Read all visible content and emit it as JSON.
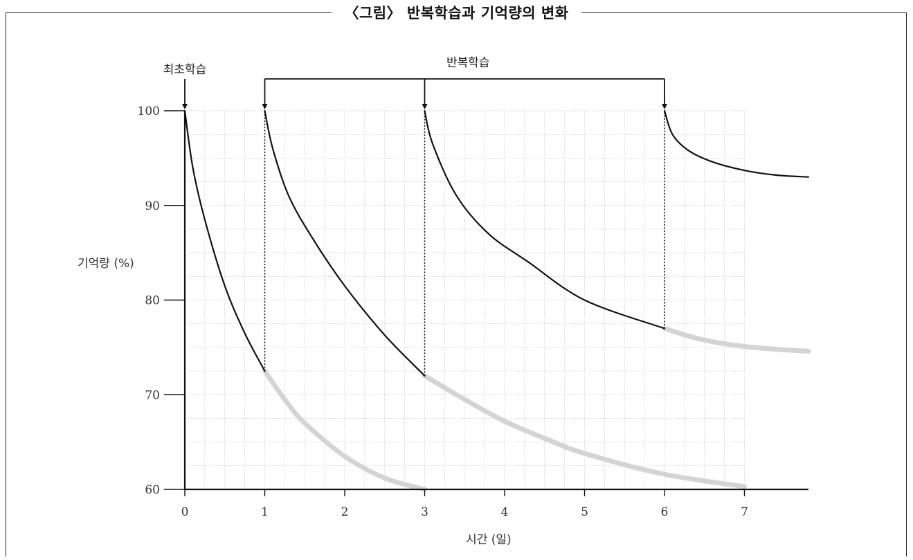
{
  "title": "〈그림〉 반복학습과 기억량의 변화",
  "chart_data": {
    "type": "line",
    "title": "〈그림〉 반복학습과 기억량의 변화",
    "xlabel": "시간 (일)",
    "ylabel": "기억량 (%)",
    "xlim": [
      0,
      7.8
    ],
    "ylim": [
      60,
      100
    ],
    "x_ticks": [
      0,
      1,
      2,
      3,
      4,
      5,
      6,
      7
    ],
    "y_ticks": [
      60,
      70,
      80,
      90,
      100
    ],
    "grid": true,
    "annotations": {
      "initial_label": "최초학습",
      "repeat_label": "반복학습",
      "initial_at": 0,
      "repeat_at": [
        1,
        3,
        6
      ]
    },
    "series": [
      {
        "style": "retained",
        "x": [
          0,
          0.1,
          0.25,
          0.5,
          0.75,
          1.0
        ],
        "y": [
          100,
          94,
          88.5,
          81.5,
          76.5,
          72.5
        ]
      },
      {
        "style": "retained",
        "x": [
          1.0,
          1.1,
          1.3,
          1.6,
          2.0,
          2.5,
          3.0
        ],
        "y": [
          100,
          96,
          91,
          86.5,
          81.5,
          76.3,
          72.0
        ]
      },
      {
        "style": "retained",
        "x": [
          3.0,
          3.1,
          3.4,
          3.8,
          4.3,
          5.0,
          6.0
        ],
        "y": [
          100,
          96.5,
          91,
          87,
          84,
          80,
          77
        ]
      },
      {
        "style": "retained",
        "x": [
          6.0,
          6.1,
          6.3,
          6.6,
          7.0,
          7.4,
          7.8
        ],
        "y": [
          100,
          97.5,
          95.8,
          94.6,
          93.7,
          93.2,
          93.0
        ]
      },
      {
        "style": "forgotten",
        "x": [
          1.0,
          1.25,
          1.5,
          2.0,
          2.5,
          3.0
        ],
        "y": [
          72.5,
          69.5,
          67,
          63.5,
          61.2,
          60.0
        ]
      },
      {
        "style": "forgotten",
        "x": [
          3.0,
          3.5,
          4.0,
          4.5,
          5.0,
          6.0,
          7.0
        ],
        "y": [
          72.0,
          69.5,
          67.2,
          65.4,
          63.8,
          61.6,
          60.3
        ]
      },
      {
        "style": "forgotten",
        "x": [
          6.0,
          6.3,
          6.6,
          7.0,
          7.4,
          7.8
        ],
        "y": [
          77.0,
          76.2,
          75.6,
          75.1,
          74.8,
          74.6
        ]
      }
    ],
    "colors": {
      "retained": "#111111",
      "forgotten": "#d4d4d4",
      "grid": "#c8c8c8"
    }
  }
}
